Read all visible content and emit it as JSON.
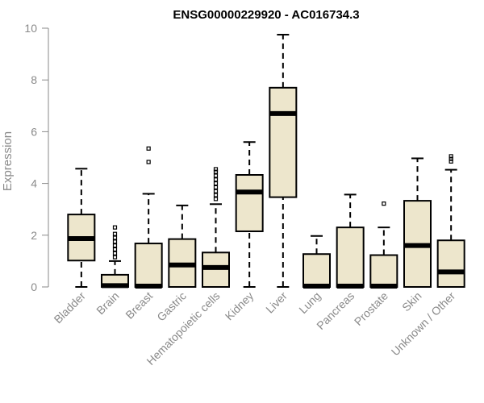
{
  "chart_data": {
    "type": "boxplot",
    "title": "ENSG00000229920 - AC016734.3",
    "ylabel": "Expression",
    "xlabel": "",
    "ylim": [
      0,
      10
    ],
    "yticks": [
      0,
      2,
      4,
      6,
      8,
      10
    ],
    "grid": false,
    "colors": {
      "box_fill": "#ede6cc",
      "box_stroke": "#000000",
      "axis": "#8a8a8a"
    },
    "categories": [
      "Bladder",
      "Brain",
      "Breast",
      "Gastric",
      "Hematopoietic cells",
      "Kidney",
      "Liver",
      "Lung",
      "Pancreas",
      "Prostate",
      "Skin",
      "Unknown / Other"
    ],
    "boxes": [
      {
        "name": "Bladder",
        "min": 0,
        "q1": 1.02,
        "median": 1.87,
        "q3": 2.8,
        "max": 4.57,
        "outliers": []
      },
      {
        "name": "Brain",
        "min": 0,
        "q1": 0,
        "median": 0.05,
        "q3": 0.47,
        "max": 1.0,
        "outliers": [
          1.15,
          1.3,
          1.45,
          1.6,
          1.75,
          1.9,
          2.05,
          2.3
        ]
      },
      {
        "name": "Breast",
        "min": 0,
        "q1": 0,
        "median": 0.03,
        "q3": 1.68,
        "max": 3.6,
        "outliers": [
          4.83,
          5.35
        ]
      },
      {
        "name": "Gastric",
        "min": 0,
        "q1": 0,
        "median": 0.85,
        "q3": 1.85,
        "max": 3.15,
        "outliers": []
      },
      {
        "name": "Hematopoietic cells",
        "min": 0,
        "q1": 0,
        "median": 0.75,
        "q3": 1.33,
        "max": 3.2,
        "outliers": [
          3.4,
          3.55,
          3.7,
          3.85,
          4.0,
          4.15,
          4.3,
          4.45,
          4.55
        ]
      },
      {
        "name": "Kidney",
        "min": 0,
        "q1": 2.15,
        "median": 3.67,
        "q3": 4.33,
        "max": 5.6,
        "outliers": []
      },
      {
        "name": "Liver",
        "min": 0,
        "q1": 3.47,
        "median": 6.7,
        "q3": 7.7,
        "max": 9.75,
        "outliers": []
      },
      {
        "name": "Lung",
        "min": 0,
        "q1": 0,
        "median": 0.03,
        "q3": 1.27,
        "max": 1.97,
        "outliers": []
      },
      {
        "name": "Pancreas",
        "min": 0,
        "q1": 0,
        "median": 0.03,
        "q3": 2.3,
        "max": 3.57,
        "outliers": []
      },
      {
        "name": "Prostate",
        "min": 0,
        "q1": 0,
        "median": 0.03,
        "q3": 1.23,
        "max": 2.3,
        "outliers": [
          3.22
        ]
      },
      {
        "name": "Skin",
        "min": 0,
        "q1": 0,
        "median": 1.6,
        "q3": 3.33,
        "max": 4.97,
        "outliers": []
      },
      {
        "name": "Unknown / Other",
        "min": 0,
        "q1": 0,
        "median": 0.58,
        "q3": 1.8,
        "max": 4.53,
        "outliers": [
          4.85,
          4.95,
          5.05
        ]
      }
    ]
  }
}
